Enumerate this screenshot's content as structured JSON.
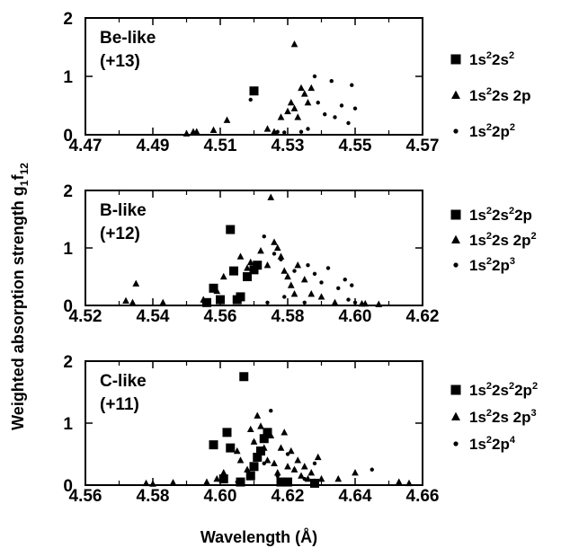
{
  "chart_data": [
    {
      "type": "scatter",
      "panel_title": "Be-like",
      "panel_charge": "(+13)",
      "xlim": [
        4.47,
        4.57
      ],
      "ylim": [
        0,
        2
      ],
      "x_ticks": [
        "4.47",
        "4.49",
        "4.51",
        "4.53",
        "4.55",
        "4.57"
      ],
      "y_ticks": [
        "0",
        "1",
        "2"
      ],
      "legend_position": "right",
      "series": [
        {
          "name": "1s²2s²",
          "marker": "square",
          "x": [
            4.52
          ],
          "y": [
            0.75
          ]
        },
        {
          "name": "1s²2s 2p",
          "marker": "triangle",
          "x": [
            4.5,
            4.502,
            4.503,
            4.508,
            4.512,
            4.524,
            4.526,
            4.528,
            4.53,
            4.531,
            4.532,
            4.532,
            4.533,
            4.534,
            4.535,
            4.536,
            4.537
          ],
          "y": [
            0.02,
            0.05,
            0.05,
            0.08,
            0.25,
            0.1,
            0.05,
            0.3,
            0.4,
            0.55,
            1.55,
            0.45,
            0.3,
            0.8,
            0.7,
            0.55,
            0.8
          ]
        },
        {
          "name": "1s²2p²",
          "marker": "circle",
          "x": [
            4.519,
            4.526,
            4.527,
            4.529,
            4.534,
            4.536,
            4.538,
            4.539,
            4.541,
            4.543,
            4.544,
            4.546,
            4.548,
            4.549,
            4.55
          ],
          "y": [
            0.6,
            0.02,
            0.05,
            0.04,
            0.05,
            0.1,
            1.0,
            0.55,
            0.35,
            0.92,
            0.3,
            0.5,
            0.2,
            0.85,
            0.45
          ]
        }
      ]
    },
    {
      "type": "scatter",
      "panel_title": "B-like",
      "panel_charge": "(+12)",
      "xlim": [
        4.52,
        4.62
      ],
      "ylim": [
        0,
        2
      ],
      "x_ticks": [
        "4.52",
        "4.54",
        "4.56",
        "4.58",
        "4.60",
        "4.62"
      ],
      "y_ticks": [
        "0",
        "1",
        "2"
      ],
      "legend_position": "right",
      "series": [
        {
          "name": "1s²2s²2p",
          "marker": "square",
          "x": [
            4.556,
            4.558,
            4.56,
            4.563,
            4.564,
            4.565,
            4.566,
            4.568,
            4.57,
            4.571
          ],
          "y": [
            0.05,
            0.3,
            0.1,
            1.32,
            0.6,
            0.1,
            0.15,
            0.5,
            0.62,
            0.7
          ]
        },
        {
          "name": "1s²2s 2p²",
          "marker": "triangle",
          "x": [
            4.532,
            4.534,
            4.535,
            4.543,
            4.555,
            4.559,
            4.561,
            4.566,
            4.568,
            4.569,
            4.572,
            4.574,
            4.575,
            4.576,
            4.577,
            4.578,
            4.579,
            4.58,
            4.581,
            4.582,
            4.583,
            4.585,
            4.587,
            4.59,
            4.594,
            4.602,
            4.603,
            4.607
          ],
          "y": [
            0.08,
            0.05,
            0.38,
            0.05,
            0.1,
            0.25,
            0.5,
            0.85,
            0.65,
            0.75,
            0.95,
            0.7,
            1.88,
            1.1,
            1.0,
            0.85,
            0.6,
            0.5,
            0.35,
            0.2,
            0.7,
            0.45,
            0.2,
            0.15,
            0.05,
            0.03,
            0.03,
            0.02
          ]
        },
        {
          "name": "1s²2p³",
          "marker": "circle",
          "x": [
            4.573,
            4.574,
            4.576,
            4.578,
            4.579,
            4.582,
            4.585,
            4.586,
            4.588,
            4.59,
            4.592,
            4.595,
            4.597,
            4.598,
            4.599,
            4.6
          ],
          "y": [
            1.2,
            0.05,
            0.9,
            0.8,
            0.15,
            0.6,
            0.05,
            0.7,
            0.55,
            0.4,
            0.65,
            0.3,
            0.45,
            0.1,
            0.35,
            0.05
          ]
        }
      ]
    },
    {
      "type": "scatter",
      "panel_title": "C-like",
      "panel_charge": "(+11)",
      "xlim": [
        4.56,
        4.66
      ],
      "ylim": [
        0,
        2
      ],
      "x_ticks": [
        "4.56",
        "4.58",
        "4.60",
        "4.62",
        "4.64",
        "4.66"
      ],
      "y_ticks": [
        "0",
        "1",
        "2"
      ],
      "legend_position": "right",
      "series": [
        {
          "name": "1s²2s²2p²",
          "marker": "square",
          "x": [
            4.598,
            4.601,
            4.602,
            4.603,
            4.606,
            4.607,
            4.609,
            4.61,
            4.611,
            4.612,
            4.613,
            4.614,
            4.618,
            4.62,
            4.628
          ],
          "y": [
            0.65,
            0.1,
            0.85,
            0.6,
            0.05,
            1.75,
            0.15,
            0.3,
            0.45,
            0.55,
            0.75,
            0.85,
            0.05,
            0.05,
            0.03
          ]
        },
        {
          "name": "1s²2s 2p³",
          "marker": "triangle",
          "x": [
            4.578,
            4.58,
            4.586,
            4.596,
            4.599,
            4.601,
            4.605,
            4.606,
            4.608,
            4.609,
            4.61,
            4.611,
            4.612,
            4.613,
            4.614,
            4.615,
            4.616,
            4.617,
            4.618,
            4.619,
            4.62,
            4.621,
            4.622,
            4.623,
            4.624,
            4.625,
            4.626,
            4.627,
            4.628,
            4.629,
            4.63,
            4.635,
            4.64,
            4.653,
            4.656
          ],
          "y": [
            0.03,
            0.02,
            0.04,
            0.05,
            0.1,
            0.2,
            0.55,
            0.4,
            0.25,
            0.9,
            0.7,
            1.12,
            0.95,
            0.6,
            0.4,
            0.8,
            0.35,
            0.2,
            0.6,
            0.85,
            0.3,
            0.55,
            0.25,
            0.4,
            0.15,
            0.3,
            0.1,
            0.2,
            0.05,
            0.45,
            0.1,
            0.1,
            0.2,
            0.05,
            0.03
          ]
        },
        {
          "name": "1s²2p⁴",
          "marker": "circle",
          "x": [
            4.605,
            4.61,
            4.613,
            4.615,
            4.617,
            4.62,
            4.622,
            4.625,
            4.628,
            4.645
          ],
          "y": [
            0.05,
            0.7,
            0.35,
            1.2,
            0.15,
            0.5,
            0.25,
            0.1,
            0.35,
            0.25
          ]
        }
      ]
    }
  ],
  "y_axis_label": "Weighted absorption strength g",
  "y_axis_label_sub": "1",
  "y_axis_label_tail": "f",
  "y_axis_label_sub2": "12",
  "x_axis_label": "Wavelength (Å)",
  "legends": [
    [
      {
        "pre": "1s",
        "s1": "2",
        "mid": "2s",
        "s2": "2",
        "mid2": "",
        "s3": "",
        "mid3": "",
        "s4": ""
      },
      {
        "pre": "1s",
        "s1": "2",
        "mid": "2s 2p",
        "s2": "",
        "mid2": "",
        "s3": "",
        "mid3": "",
        "s4": ""
      },
      {
        "pre": "1s",
        "s1": "2",
        "mid": "2p",
        "s2": "2",
        "mid2": "",
        "s3": "",
        "mid3": "",
        "s4": ""
      }
    ],
    [
      {
        "pre": "1s",
        "s1": "2",
        "mid": "2s",
        "s2": "2",
        "mid2": "2p",
        "s3": "",
        "mid3": "",
        "s4": ""
      },
      {
        "pre": "1s",
        "s1": "2",
        "mid": "2s 2p",
        "s2": "2",
        "mid2": "",
        "s3": "",
        "mid3": "",
        "s4": ""
      },
      {
        "pre": "1s",
        "s1": "2",
        "mid": "2p",
        "s2": "3",
        "mid2": "",
        "s3": "",
        "mid3": "",
        "s4": ""
      }
    ],
    [
      {
        "pre": "1s",
        "s1": "2",
        "mid": "2s",
        "s2": "2",
        "mid2": "2p",
        "s3": "2",
        "mid3": "",
        "s4": ""
      },
      {
        "pre": "1s",
        "s1": "2",
        "mid": "2s 2p",
        "s2": "3",
        "mid2": "",
        "s3": "",
        "mid3": "",
        "s4": ""
      },
      {
        "pre": "1s",
        "s1": "2",
        "mid": "2p",
        "s2": "4",
        "mid2": "",
        "s3": "",
        "mid3": "",
        "s4": ""
      }
    ]
  ]
}
